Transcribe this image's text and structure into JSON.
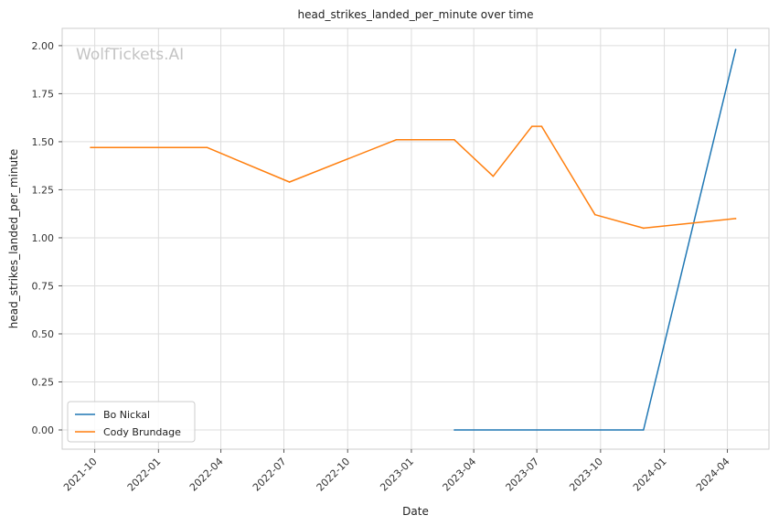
{
  "chart_data": {
    "type": "line",
    "title": "head_strikes_landed_per_minute over time",
    "xlabel": "Date",
    "ylabel": "head_strikes_landed_per_minute",
    "watermark": "WolfTickets.AI",
    "x_ticks": [
      "2021-10",
      "2022-01",
      "2022-04",
      "2022-07",
      "2022-10",
      "2023-01",
      "2023-04",
      "2023-07",
      "2023-10",
      "2024-01",
      "2024-04"
    ],
    "y_ticks": [
      "0.00",
      "0.25",
      "0.50",
      "0.75",
      "1.00",
      "1.25",
      "1.50",
      "1.75",
      "2.00"
    ],
    "xlim": [
      "2021-08-15",
      "2024-05-31"
    ],
    "ylim": [
      -0.1,
      2.09
    ],
    "grid": true,
    "legend_position": "bottom-left",
    "series": [
      {
        "name": "Bo Nickal",
        "color": "#1f77b4",
        "points": [
          {
            "x": "2023-03-04",
            "y": 0.0
          },
          {
            "x": "2023-12-02",
            "y": 0.0
          },
          {
            "x": "2024-04-13",
            "y": 1.98
          }
        ]
      },
      {
        "name": "Cody Brundage",
        "color": "#ff7f0e",
        "points": [
          {
            "x": "2021-09-25",
            "y": 1.47
          },
          {
            "x": "2022-03-12",
            "y": 1.47
          },
          {
            "x": "2022-07-09",
            "y": 1.29
          },
          {
            "x": "2022-12-10",
            "y": 1.51
          },
          {
            "x": "2023-03-04",
            "y": 1.51
          },
          {
            "x": "2023-04-29",
            "y": 1.32
          },
          {
            "x": "2023-06-24",
            "y": 1.58
          },
          {
            "x": "2023-07-08",
            "y": 1.58
          },
          {
            "x": "2023-09-23",
            "y": 1.12
          },
          {
            "x": "2023-12-02",
            "y": 1.05
          },
          {
            "x": "2024-04-13",
            "y": 1.1
          }
        ]
      }
    ]
  }
}
